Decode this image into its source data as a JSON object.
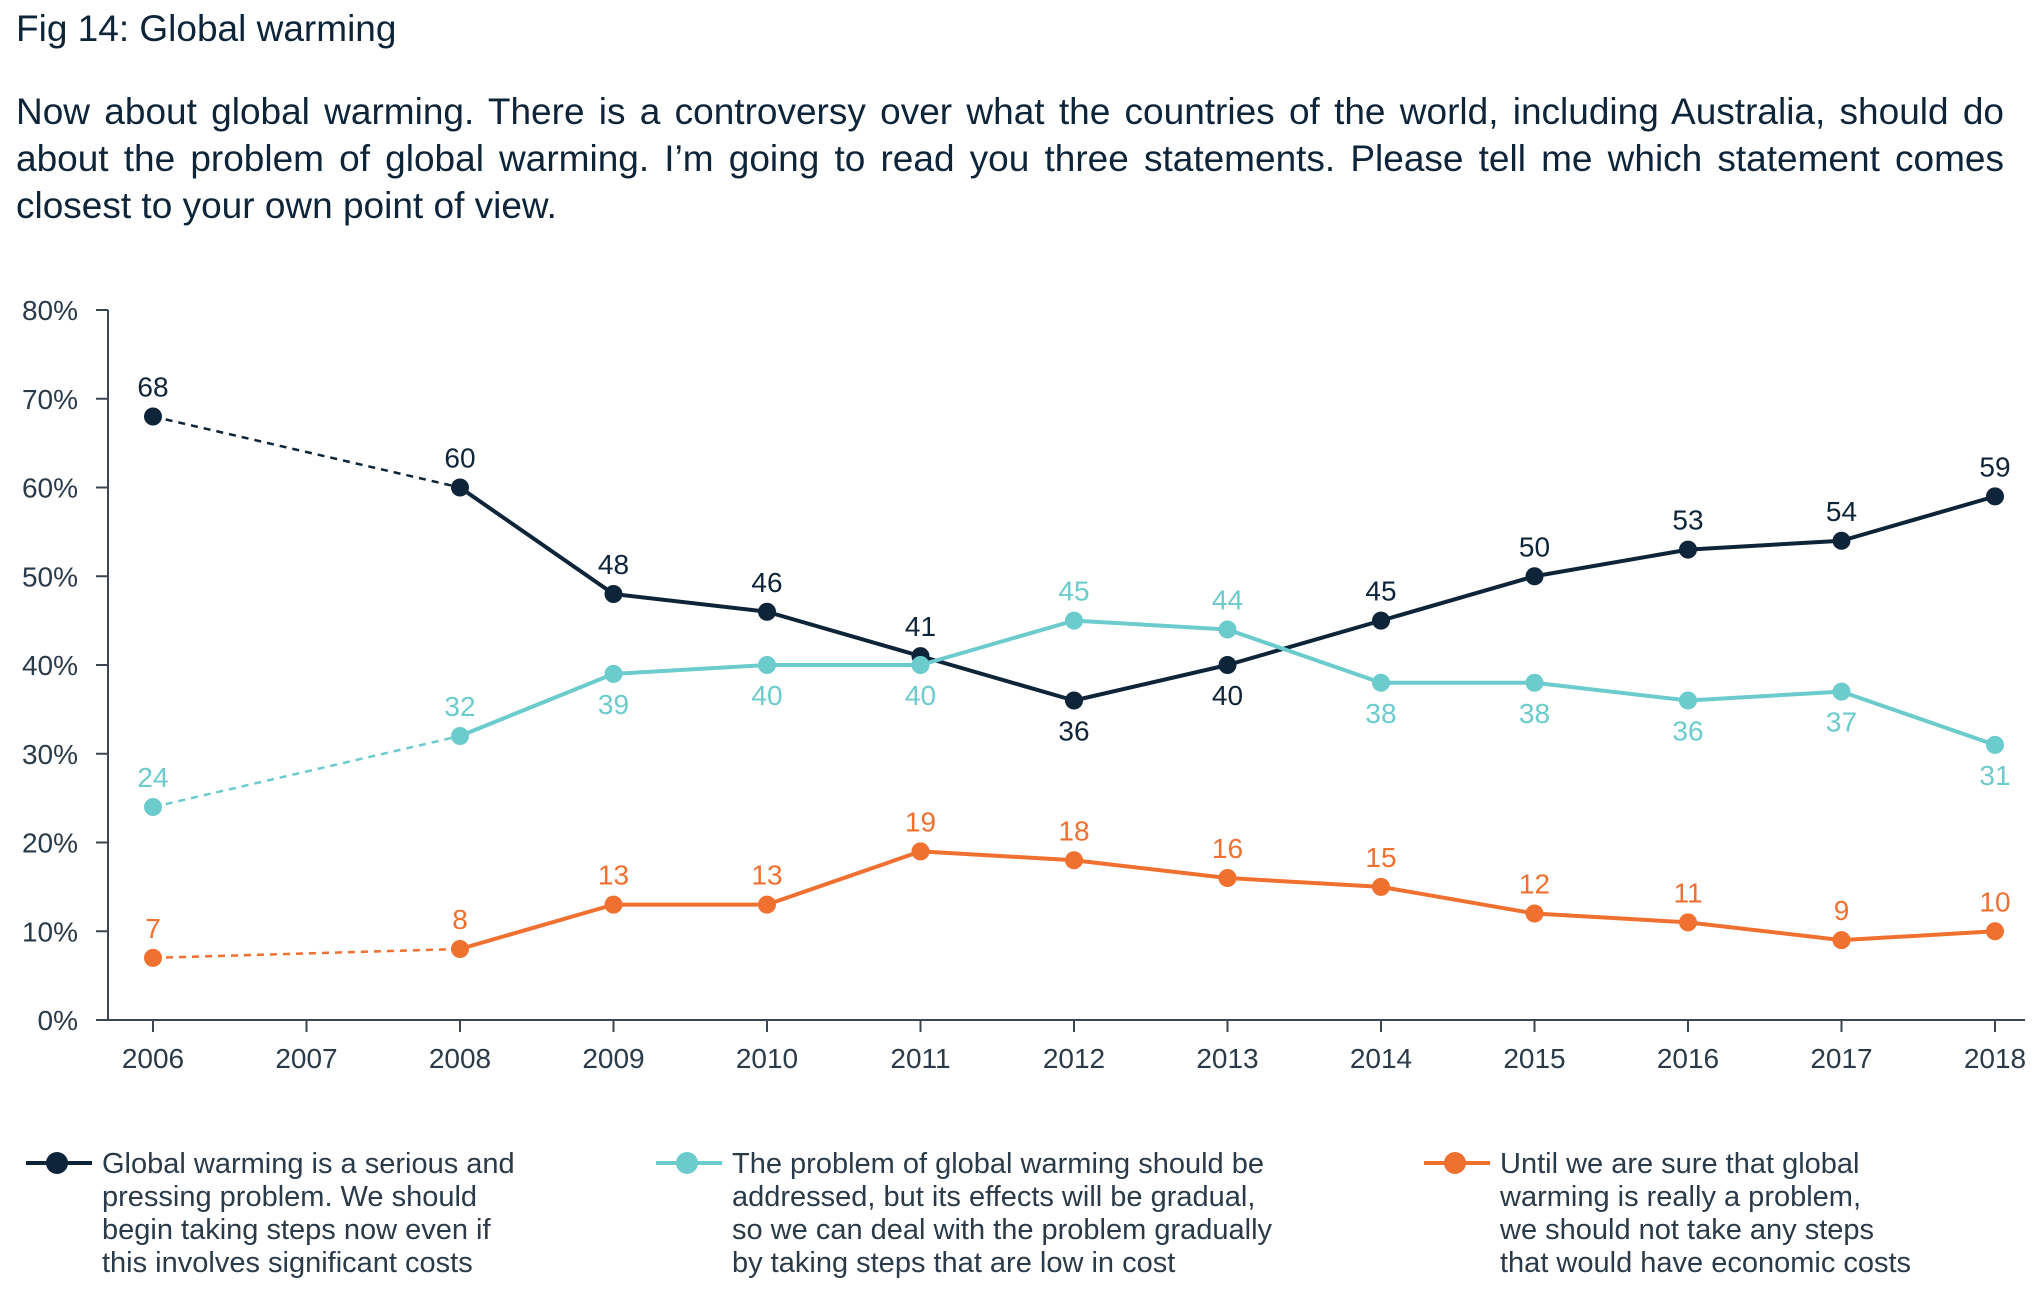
{
  "figure_title": "Fig 14: Global warming",
  "question": "Now about global warming. There is a controversy over what the countries of the world, including Australia, should do about the problem of global warming. I’m going to read you three statements. Please tell me which statement comes closest to your own point of view.",
  "chart_data": {
    "type": "line",
    "title": "Fig 14: Global warming",
    "xlabel": "",
    "ylabel": "",
    "ylim": [
      0,
      80
    ],
    "y_ticks": [
      0,
      10,
      20,
      30,
      40,
      50,
      60,
      70,
      80
    ],
    "y_tick_labels": [
      "0%",
      "10%",
      "20%",
      "30%",
      "40%",
      "50%",
      "60%",
      "70%",
      "80%"
    ],
    "categories": [
      "2006",
      "2007",
      "2008",
      "2009",
      "2010",
      "2011",
      "2012",
      "2013",
      "2014",
      "2015",
      "2016",
      "2017",
      "2018"
    ],
    "dashed_segment": [
      "2006",
      "2008"
    ],
    "grid": false,
    "legend_position": "bottom",
    "series": [
      {
        "name": "Global warming is a serious and pressing problem. We should begin taking steps now even if this involves significant costs",
        "color": "#0d2439",
        "values": [
          68,
          null,
          60,
          48,
          46,
          41,
          36,
          40,
          45,
          50,
          53,
          54,
          59
        ],
        "labels": [
          "68",
          "",
          "60",
          "48",
          "46",
          "41",
          "36",
          "40",
          "45",
          "50",
          "53",
          "54",
          "59"
        ]
      },
      {
        "name": "The problem of global warming should be addressed, but its effects will be gradual, so we can deal with the problem gradually by taking steps that are low in cost",
        "color": "#6ccbcc",
        "values": [
          24,
          null,
          32,
          39,
          40,
          40,
          45,
          44,
          38,
          38,
          36,
          37,
          31
        ],
        "labels": [
          "24",
          "",
          "32",
          "39",
          "40",
          "40",
          "45",
          "44",
          "38",
          "38",
          "36",
          "37",
          "31"
        ]
      },
      {
        "name": "Until we are sure that global warming is really a problem, we should not take any steps that would have economic costs",
        "color": "#f07030",
        "values": [
          7,
          null,
          8,
          13,
          13,
          19,
          18,
          16,
          15,
          12,
          11,
          9,
          10
        ],
        "labels": [
          "7",
          "",
          "8",
          "13",
          "13",
          "19",
          "18",
          "16",
          "15",
          "12",
          "11",
          "9",
          "10"
        ]
      }
    ]
  },
  "legend": [
    {
      "lines": [
        "Global warming is a serious and",
        "pressing problem. We should",
        "begin taking steps now even if",
        "this involves significant costs"
      ]
    },
    {
      "lines": [
        "The problem of global warming should be",
        "addressed, but its effects will be gradual,",
        "so we can deal with the problem gradually",
        "by taking steps that are low in cost"
      ]
    },
    {
      "lines": [
        "Until we are sure that global",
        "warming is really a problem,",
        "we should not take any steps",
        "that would have economic costs"
      ]
    }
  ]
}
